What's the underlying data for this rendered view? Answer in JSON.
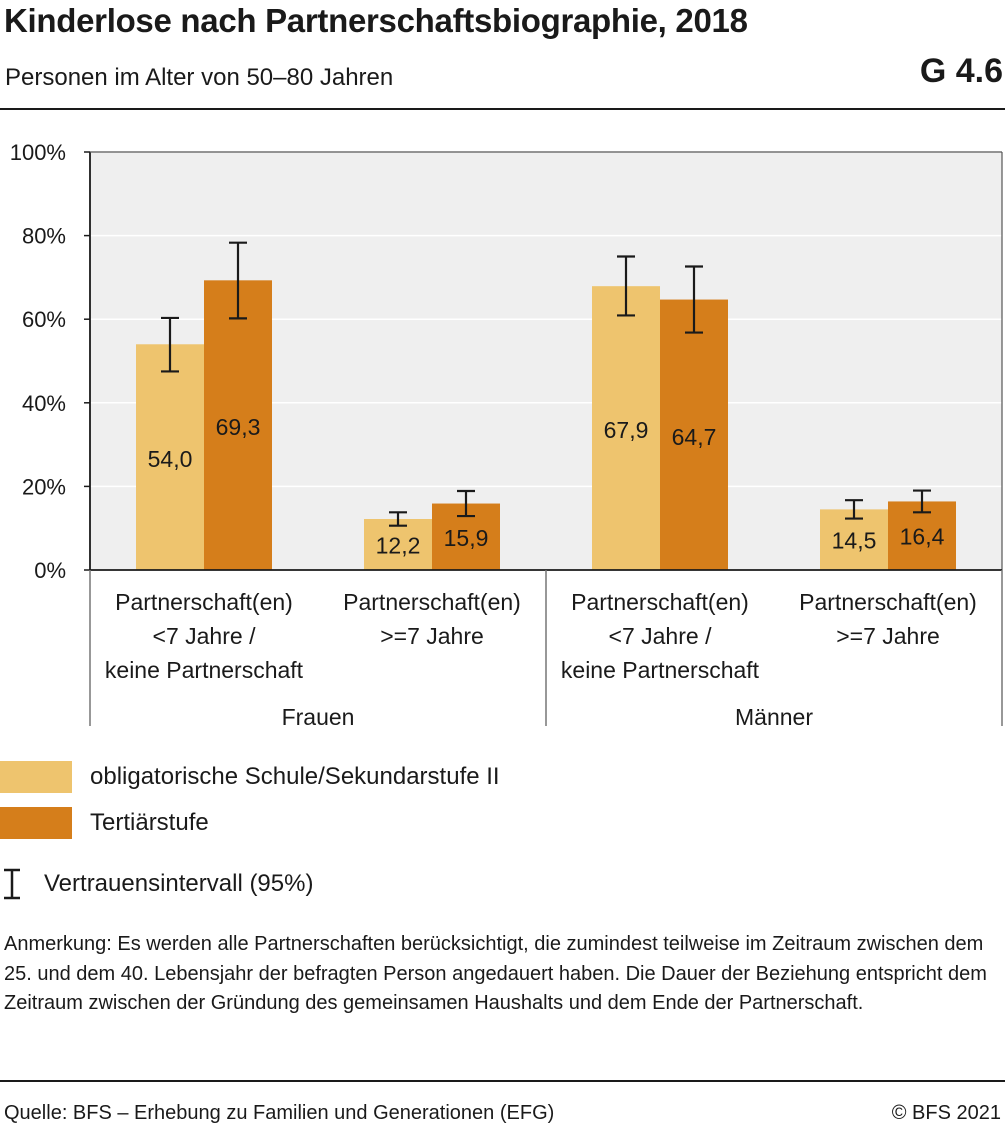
{
  "header": {
    "title": "Kinderlose nach Partnerschaftsbiographie, 2018",
    "subtitle": "Personen im Alter von 50–80 Jahren",
    "chart_number": "G 4.6"
  },
  "chart_data": {
    "type": "bar",
    "y_ticks": [
      "0%",
      "20%",
      "40%",
      "60%",
      "80%",
      "100%"
    ],
    "ylim": [
      0,
      100
    ],
    "grid": true,
    "groups": [
      {
        "name": "Frauen",
        "categories": [
          {
            "label": [
              "Partnerschaft(en)",
              "<7 Jahre /",
              "keine Partnerschaft"
            ],
            "bars": [
              {
                "series": 0,
                "value": 54.0,
                "label": "54,0",
                "ci": [
                  47.5,
                  60.3
                ]
              },
              {
                "series": 1,
                "value": 69.3,
                "label": "69,3",
                "ci": [
                  60.2,
                  78.3
                ]
              }
            ]
          },
          {
            "label": [
              "Partnerschaft(en)",
              ">=7 Jahre"
            ],
            "bars": [
              {
                "series": 0,
                "value": 12.2,
                "label": "12,2",
                "ci": [
                  10.6,
                  13.8
                ]
              },
              {
                "series": 1,
                "value": 15.9,
                "label": "15,9",
                "ci": [
                  12.9,
                  18.9
                ]
              }
            ]
          }
        ]
      },
      {
        "name": "Männer",
        "categories": [
          {
            "label": [
              "Partnerschaft(en)",
              "<7 Jahre /",
              "keine Partnerschaft"
            ],
            "bars": [
              {
                "series": 0,
                "value": 67.9,
                "label": "67,9",
                "ci": [
                  60.9,
                  75.0
                ]
              },
              {
                "series": 1,
                "value": 64.7,
                "label": "64,7",
                "ci": [
                  56.8,
                  72.6
                ]
              }
            ]
          },
          {
            "label": [
              "Partnerschaft(en)",
              ">=7 Jahre"
            ],
            "bars": [
              {
                "series": 0,
                "value": 14.5,
                "label": "14,5",
                "ci": [
                  12.3,
                  16.7
                ]
              },
              {
                "series": 1,
                "value": 16.4,
                "label": "16,4",
                "ci": [
                  13.8,
                  19.0
                ]
              }
            ]
          }
        ]
      }
    ],
    "series": [
      {
        "name": "obligatorische Schule/Sekundarstufe II",
        "color": "#EEC46E"
      },
      {
        "name": "Tertiärstufe",
        "color": "#D57E1B"
      }
    ],
    "legend_position": "bottom",
    "plot_background": "#EFEFEF"
  },
  "legend": {
    "ci_label": "Vertrauensintervall (95%)"
  },
  "note": "Anmerkung: Es werden alle Partnerschaften berücksichtigt, die zumindest teilweise im Zeitraum zwischen dem 25. und dem 40. Lebensjahr der befragten Person angedauert haben. Die Dauer der Beziehung entspricht dem Zeitraum zwischen der Gründung des gemeinsamen Haushalts und dem Ende der Partnerschaft.",
  "footer": {
    "source": "Quelle: BFS – Erhebung zu Familien und Generationen (EFG)",
    "copyright": "© BFS 2021"
  }
}
